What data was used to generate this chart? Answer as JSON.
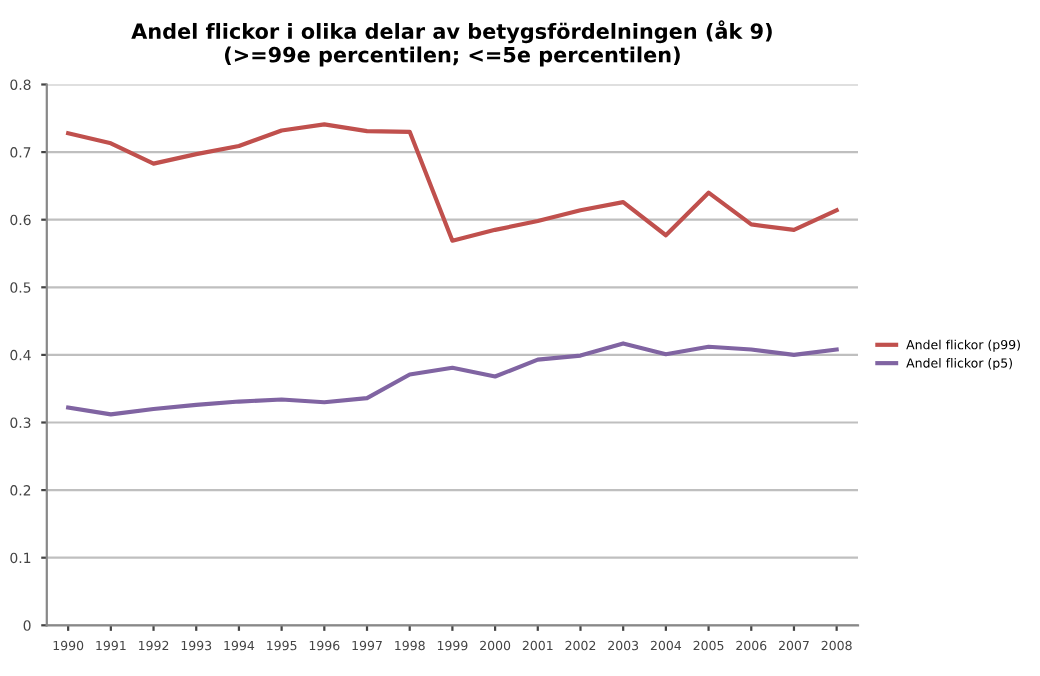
{
  "chart_data": {
    "type": "line",
    "title": "Andel flickor i olika delar av betygsfördelningen (åk 9)\n(>=99e percentilen; <=5e percentilen)",
    "categories": [
      "1990",
      "1991",
      "1992",
      "1993",
      "1994",
      "1995",
      "1996",
      "1997",
      "1998",
      "1999",
      "2000",
      "2001",
      "2002",
      "2003",
      "2004",
      "2005",
      "2006",
      "2007",
      "2008"
    ],
    "series": [
      {
        "name": "Andel flickor (p99)",
        "color": "#c0504d",
        "values": [
          0.728,
          0.713,
          0.683,
          0.697,
          0.709,
          0.732,
          0.741,
          0.731,
          0.73,
          0.569,
          0.585,
          0.598,
          0.614,
          0.626,
          0.577,
          0.64,
          0.593,
          0.585,
          0.614
        ]
      },
      {
        "name": "Andel flickor (p5)",
        "color": "#8064a2",
        "values": [
          0.322,
          0.312,
          0.32,
          0.326,
          0.331,
          0.334,
          0.33,
          0.336,
          0.371,
          0.381,
          0.368,
          0.393,
          0.399,
          0.417,
          0.401,
          0.412,
          0.408,
          0.4,
          0.408
        ]
      }
    ],
    "ylim": [
      0,
      0.8
    ],
    "yticks": [
      {
        "value": 0,
        "label": "0"
      },
      0.1,
      0.2,
      0.3,
      0.4,
      0.5,
      0.6,
      0.7,
      0.8
    ],
    "grid": "y",
    "legend": "right",
    "marker": "none",
    "line_style": "solid"
  }
}
